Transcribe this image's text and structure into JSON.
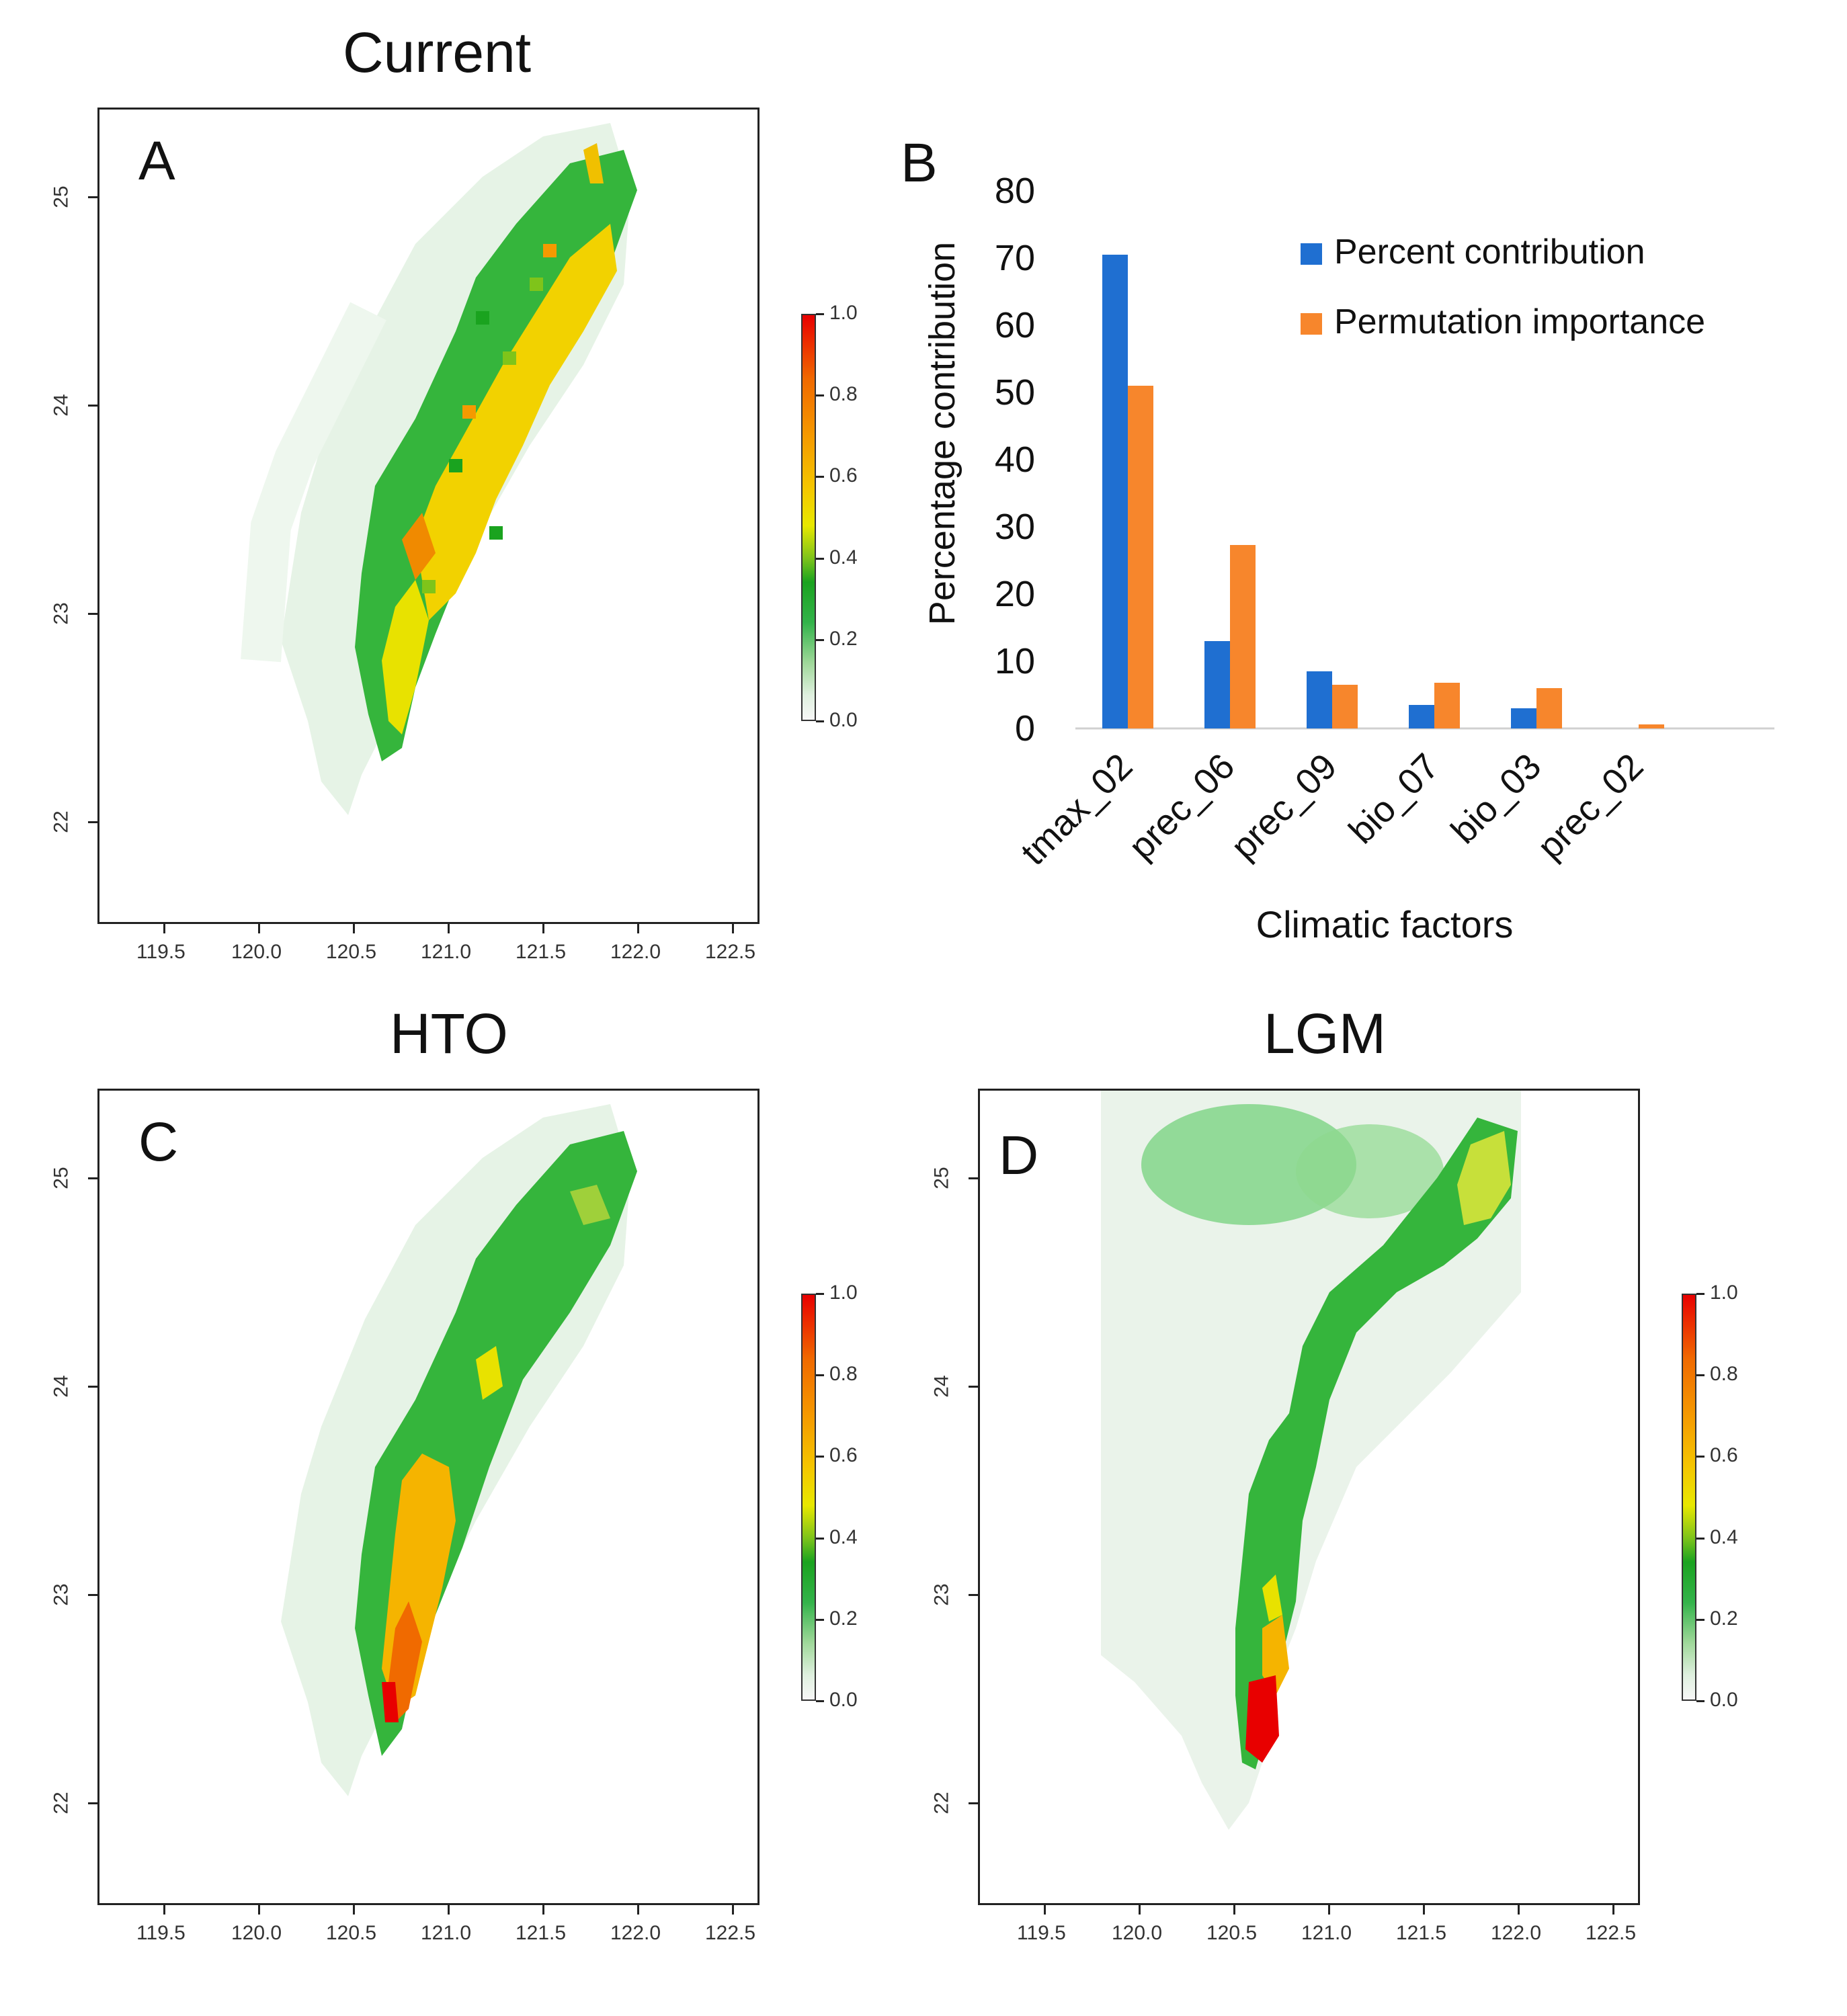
{
  "panels": {
    "A": {
      "title": "Current",
      "letter": "A"
    },
    "B": {
      "letter": "B"
    },
    "C": {
      "title": "HTO",
      "letter": "C"
    },
    "D": {
      "title": "LGM",
      "letter": "D"
    }
  },
  "map_axes": {
    "x_ticks": [
      "119.5",
      "120.0",
      "120.5",
      "121.0",
      "121.5",
      "122.0",
      "122.5"
    ],
    "y_ticks": [
      "25",
      "24",
      "23",
      "22"
    ]
  },
  "legend": {
    "ticks": [
      "1.0",
      "0.8",
      "0.6",
      "0.4",
      "0.2",
      "0.0"
    ],
    "colors": [
      "#f7f7f7",
      "#1aa31f",
      "#e8e800",
      "#f59a00",
      "#e80000"
    ]
  },
  "chart_data": {
    "type": "bar",
    "title": "",
    "xlabel": "Climatic factors",
    "ylabel": "Percentage contribution",
    "ylim": [
      0,
      80
    ],
    "y_ticks": [
      "80",
      "70",
      "60",
      "50",
      "40",
      "30",
      "20",
      "10",
      "0"
    ],
    "categories": [
      "tmax_02",
      "prec_06",
      "prec_09",
      "bio_07",
      "bio_03",
      "prec_02"
    ],
    "series": [
      {
        "name": "Percent contribution",
        "color": "#1f6fd1",
        "values": [
          70.5,
          13.0,
          8.5,
          3.5,
          3.0,
          0.0
        ]
      },
      {
        "name": "Permutation importance",
        "color": "#f7862c",
        "values": [
          51.0,
          27.3,
          6.5,
          6.8,
          6.0,
          0.6
        ]
      }
    ],
    "legend_position": "top-right"
  }
}
